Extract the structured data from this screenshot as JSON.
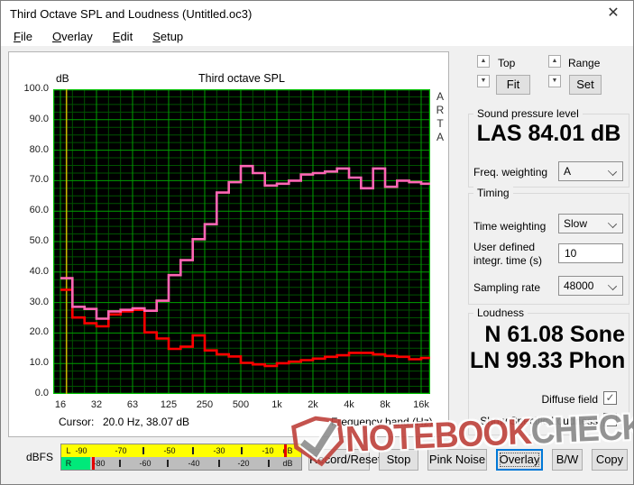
{
  "window": {
    "title": "Third Octave SPL and Loudness (Untitled.oc3)",
    "close_glyph": "✕"
  },
  "menu": {
    "items": [
      "File",
      "Overlay",
      "Edit",
      "Setup"
    ]
  },
  "chart": {
    "db_label": "dB",
    "title": "Third octave SPL",
    "side_text": [
      "A",
      "R",
      "T",
      "A"
    ],
    "cursor_label": "Cursor:",
    "cursor_value": "20.0 Hz, 38.07 dB",
    "xlabel": "Frequency band (Hz)",
    "y_ticks": [
      "100.0",
      "90.0",
      "80.0",
      "70.0",
      "60.0",
      "50.0",
      "40.0",
      "30.0",
      "20.0",
      "10.0",
      "0.0"
    ],
    "x_ticks": [
      "16",
      "32",
      "63",
      "125",
      "250",
      "500",
      "1k",
      "2k",
      "4k",
      "8k",
      "16k"
    ]
  },
  "chart_data": {
    "type": "step-line",
    "title": "Third octave SPL",
    "xlabel": "Frequency band (Hz)",
    "ylabel": "dB",
    "ylim": [
      0,
      100
    ],
    "x_scale": "third-octave-bands",
    "grid": "on",
    "categories": [
      "20",
      "25",
      "31.5",
      "40",
      "50",
      "63",
      "80",
      "100",
      "125",
      "160",
      "200",
      "250",
      "315",
      "400",
      "500",
      "630",
      "800",
      "1k",
      "1.25k",
      "1.6k",
      "2k",
      "2.5k",
      "3.15k",
      "4k",
      "5k",
      "6.3k",
      "8k",
      "10k",
      "12.5k",
      "16k",
      "20k"
    ],
    "series": [
      {
        "name": "SPL current (pink)",
        "color": "#ff66b4",
        "values": [
          38,
          28.6,
          27.9,
          24.7,
          27.1,
          27.6,
          28.1,
          27.3,
          30.6,
          39,
          43.9,
          50.8,
          55.7,
          66.1,
          69.5,
          74.8,
          72.5,
          68.4,
          69,
          70,
          72,
          72.5,
          73,
          74,
          71,
          67.5,
          74,
          68,
          70,
          69.5,
          69
        ]
      },
      {
        "name": "SPL reference (red)",
        "color": "#ff0000",
        "values": [
          34.2,
          25.1,
          23.2,
          22.2,
          26.1,
          27.1,
          27.6,
          20.2,
          18.2,
          14.8,
          15.5,
          19.2,
          14.3,
          13,
          12.3,
          10.2,
          9.7,
          9.2,
          10.1,
          10.6,
          11.1,
          11.6,
          12.2,
          12.7,
          13.5,
          13.5,
          13,
          12.5,
          12.2,
          11.4,
          11.8
        ]
      }
    ],
    "cursor": {
      "band": "20",
      "text": "20.0 Hz, 38.07 dB"
    }
  },
  "panel": {
    "top_label": "Top",
    "fit_button": "Fit",
    "range_label": "Range",
    "set_button": "Set",
    "spl": {
      "title": "Sound pressure level",
      "value": "LAS 84.01 dB",
      "freq_weighting_label": "Freq. weighting",
      "freq_weighting_value": "A"
    },
    "timing": {
      "title": "Timing",
      "time_weighting_label": "Time weighting",
      "time_weighting_value": "Slow",
      "integr_label_line1": "User defined",
      "integr_label_line2": "integr. time (s)",
      "integr_value": "10",
      "sampling_label": "Sampling rate",
      "sampling_value": "48000"
    },
    "loudness": {
      "title": "Loudness",
      "sone_value": "N 61.08 Sone",
      "phon_value": "LN 99.33 Phon",
      "diffuse_label": "Diffuse field",
      "diffuse_checked": true,
      "specific_label": "Show Specific Loudness",
      "specific_checked": false,
      "check_glyph": "✓"
    }
  },
  "meter": {
    "label": "dBFS",
    "rows": [
      {
        "channel": "L",
        "labels": [
          "-90",
          "-70",
          "-50",
          "-30",
          "-10",
          "dB"
        ]
      },
      {
        "channel": "R",
        "labels": [
          "-80",
          "-60",
          "-40",
          "-20",
          "dB"
        ]
      }
    ]
  },
  "footer_buttons": [
    {
      "label": "Record/Reset",
      "focused": false
    },
    {
      "label": "Stop",
      "focused": false
    },
    {
      "label": "Pink Noise",
      "focused": false
    },
    {
      "label": "Overlay",
      "focused": true
    },
    {
      "label": "B/W",
      "focused": false
    },
    {
      "label": "Copy",
      "focused": false
    }
  ],
  "watermark": {
    "word1": "NOTEBOOK",
    "word2": "CHECK"
  },
  "colors": {
    "accent_focus": "#0078d7",
    "plot_bg": "#000000",
    "grid_major": "#00a000",
    "grid_minor": "#005200",
    "plot_border": "#00c000",
    "cursor_line": "#c8b400",
    "series_pink": "#ff66b4",
    "series_red": "#ff0000",
    "meter_yellow": "#ffff00",
    "meter_green": "#00e97a",
    "watermark_red": "#c0453f",
    "watermark_gray": "#8c8c8c"
  }
}
